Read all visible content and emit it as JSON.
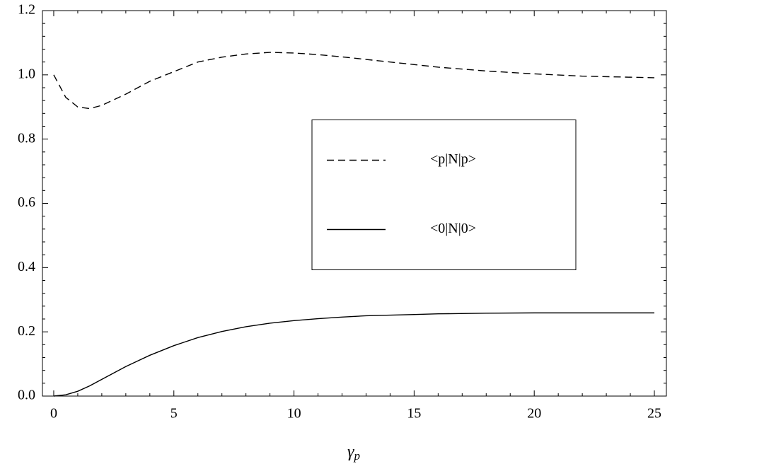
{
  "chart_data": {
    "type": "line",
    "x_label": {
      "symbol": "γ",
      "subscript": "p"
    },
    "x": [
      0,
      0.5,
      1,
      1.5,
      2,
      3,
      4,
      5,
      6,
      7,
      8,
      9,
      10,
      11,
      12,
      13,
      14,
      15,
      16,
      18,
      20,
      22,
      25
    ],
    "series": [
      {
        "name": "<p|N|p>",
        "color": "#000000",
        "dash": "dashed",
        "values": [
          1.0,
          0.93,
          0.9,
          0.895,
          0.905,
          0.94,
          0.98,
          1.01,
          1.04,
          1.055,
          1.065,
          1.07,
          1.068,
          1.063,
          1.056,
          1.048,
          1.04,
          1.032,
          1.024,
          1.012,
          1.003,
          0.996,
          0.991
        ]
      },
      {
        "name": "<0|N|0>",
        "color": "#000000",
        "dash": "solid",
        "values": [
          0,
          0.004,
          0.015,
          0.032,
          0.052,
          0.092,
          0.127,
          0.157,
          0.182,
          0.201,
          0.216,
          0.227,
          0.235,
          0.241,
          0.246,
          0.25,
          0.252,
          0.254,
          0.256,
          0.258,
          0.259,
          0.259,
          0.259
        ]
      }
    ],
    "xlim": [
      -0.47,
      25.5
    ],
    "xticks": [
      0,
      5,
      10,
      15,
      20,
      25
    ],
    "ylim": [
      0,
      1.2
    ],
    "yticks": [
      {
        "value": 0,
        "label": "0.0"
      },
      0.2,
      0.4,
      0.6,
      0.8,
      {
        "value": 1,
        "label": "1.0"
      },
      1.2
    ],
    "legend": "center right",
    "grid": false
  }
}
